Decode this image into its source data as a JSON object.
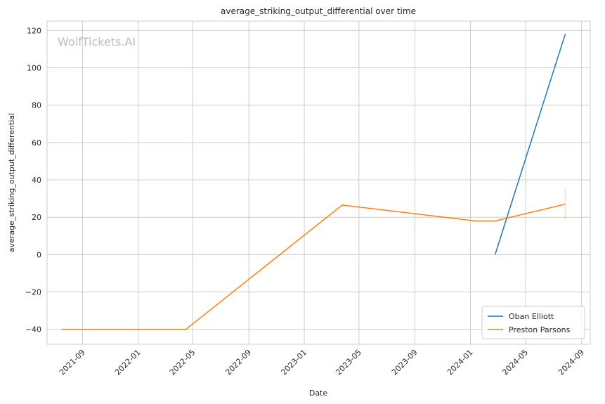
{
  "chart_data": {
    "type": "line",
    "title": "average_striking_output_differential over time",
    "xlabel": "Date",
    "ylabel": "average_striking_output_differential",
    "watermark": "WolfTickets.AI",
    "x_ticks": [
      "2021-09",
      "2022-01",
      "2022-05",
      "2022-09",
      "2023-01",
      "2023-05",
      "2023-09",
      "2024-01",
      "2024-05",
      "2024-09"
    ],
    "y_ticks": [
      -40,
      -20,
      0,
      20,
      40,
      60,
      80,
      100,
      120
    ],
    "ylim": [
      -48,
      125
    ],
    "xlim": [
      "2021-06-15",
      "2024-09-20"
    ],
    "grid": true,
    "legend_position": "lower-right",
    "series": [
      {
        "name": "Oban Elliott",
        "color": "#1f77b4",
        "points": [
          {
            "x": "2024-02-24",
            "y": 0
          },
          {
            "x": "2024-07-27",
            "y": 118
          }
        ]
      },
      {
        "name": "Preston Parsons",
        "color": "#ff7f0e",
        "points": [
          {
            "x": "2021-07-17",
            "y": -40
          },
          {
            "x": "2022-04-16",
            "y": -40
          },
          {
            "x": "2023-03-25",
            "y": 26.5
          },
          {
            "x": "2024-01-13",
            "y": 18
          },
          {
            "x": "2024-02-24",
            "y": 18
          },
          {
            "x": "2024-07-27",
            "y": 27
          }
        ],
        "error_band": {
          "x": "2024-07-27",
          "low": 18,
          "high": 36
        }
      }
    ]
  }
}
